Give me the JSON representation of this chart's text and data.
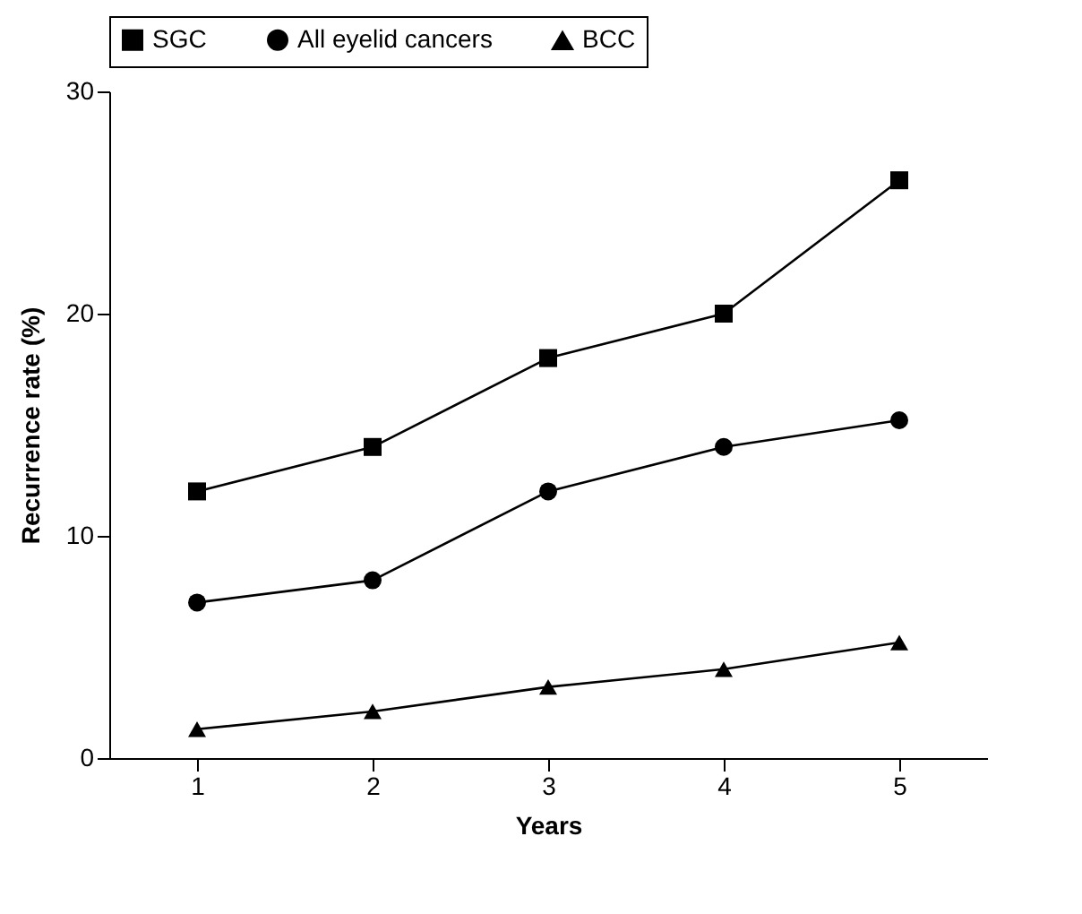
{
  "chart_data": {
    "type": "line",
    "xlabel": "Years",
    "ylabel": "Recurrence rate (%)",
    "x": [
      1,
      2,
      3,
      4,
      5
    ],
    "xlim": [
      0.5,
      5.5
    ],
    "xticks": [
      1,
      2,
      3,
      4,
      5
    ],
    "ylim": [
      0,
      30
    ],
    "yticks": [
      0,
      10,
      20,
      30
    ],
    "grid": false,
    "legend": "top",
    "line_style": "solid",
    "series": [
      {
        "name": "SGC",
        "color": "#000000",
        "marker": "square",
        "values": [
          12,
          14,
          18,
          20,
          26
        ]
      },
      {
        "name": "All eyelid cancers",
        "color": "#000000",
        "marker": "circle",
        "values": [
          7,
          8,
          12,
          14,
          15.2
        ]
      },
      {
        "name": "BCC",
        "color": "#000000",
        "marker": "triangle",
        "values": [
          1.3,
          2.1,
          3.2,
          4.0,
          5.2
        ]
      }
    ]
  }
}
